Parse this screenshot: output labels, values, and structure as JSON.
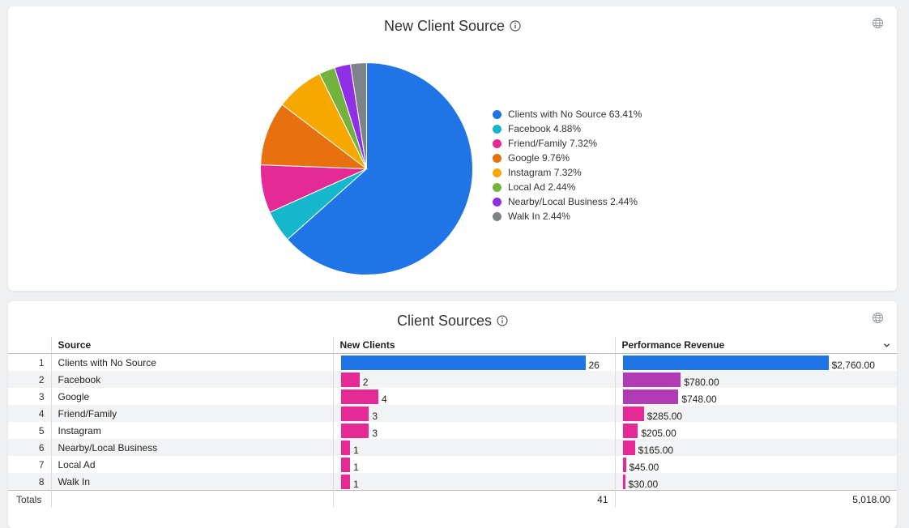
{
  "card1": {
    "title": "New Client Source"
  },
  "card2": {
    "title": "Client Sources"
  },
  "chart_data": [
    {
      "type": "pie",
      "title": "New Client Source",
      "labels": [
        "Clients with No Source",
        "Facebook",
        "Friend/Family",
        "Google",
        "Instagram",
        "Local Ad",
        "Nearby/Local Business",
        "Walk In"
      ],
      "values": [
        63.41,
        4.88,
        7.32,
        9.76,
        7.32,
        2.44,
        2.44,
        2.44
      ],
      "legend_text": [
        "Clients with No Source 63.41%",
        "Facebook 4.88%",
        "Friend/Family 7.32%",
        "Google 9.76%",
        "Instagram 7.32%",
        "Local Ad 2.44%",
        "Nearby/Local Business 2.44%",
        "Walk In 2.44%"
      ],
      "colors": [
        "#1f74e6",
        "#14b7cc",
        "#e62a95",
        "#e8710f",
        "#f7a800",
        "#72b33d",
        "#8f2fe6",
        "#7d8389"
      ],
      "legend_placement": "right"
    },
    {
      "type": "table",
      "title": "Client Sources",
      "columns": [
        "Source",
        "New Clients",
        "Performance Revenue"
      ],
      "rows": [
        {
          "idx": "1",
          "source": "Clients with No Source",
          "new_clients": 26,
          "new_clients_label": "26",
          "revenue": 2760,
          "revenue_label": "$2,760.00"
        },
        {
          "idx": "2",
          "source": "Facebook",
          "new_clients": 2,
          "new_clients_label": "2",
          "revenue": 780,
          "revenue_label": "$780.00"
        },
        {
          "idx": "3",
          "source": "Google",
          "new_clients": 4,
          "new_clients_label": "4",
          "revenue": 748,
          "revenue_label": "$748.00"
        },
        {
          "idx": "4",
          "source": "Friend/Family",
          "new_clients": 3,
          "new_clients_label": "3",
          "revenue": 285,
          "revenue_label": "$285.00"
        },
        {
          "idx": "5",
          "source": "Instagram",
          "new_clients": 3,
          "new_clients_label": "3",
          "revenue": 205,
          "revenue_label": "$205.00"
        },
        {
          "idx": "6",
          "source": "Nearby/Local Business",
          "new_clients": 1,
          "new_clients_label": "1",
          "revenue": 165,
          "revenue_label": "$165.00"
        },
        {
          "idx": "7",
          "source": "Local Ad",
          "new_clients": 1,
          "new_clients_label": "1",
          "revenue": 45,
          "revenue_label": "$45.00"
        },
        {
          "idx": "8",
          "source": "Walk In",
          "new_clients": 1,
          "new_clients_label": "1",
          "revenue": 30,
          "revenue_label": "$30.00"
        }
      ],
      "totals": {
        "label": "Totals",
        "new_clients": "41",
        "revenue": "5,018.00"
      },
      "bar_colors": {
        "max": "#1f74e6",
        "high": "#b03bb5",
        "low": "#e62a95"
      }
    }
  ]
}
